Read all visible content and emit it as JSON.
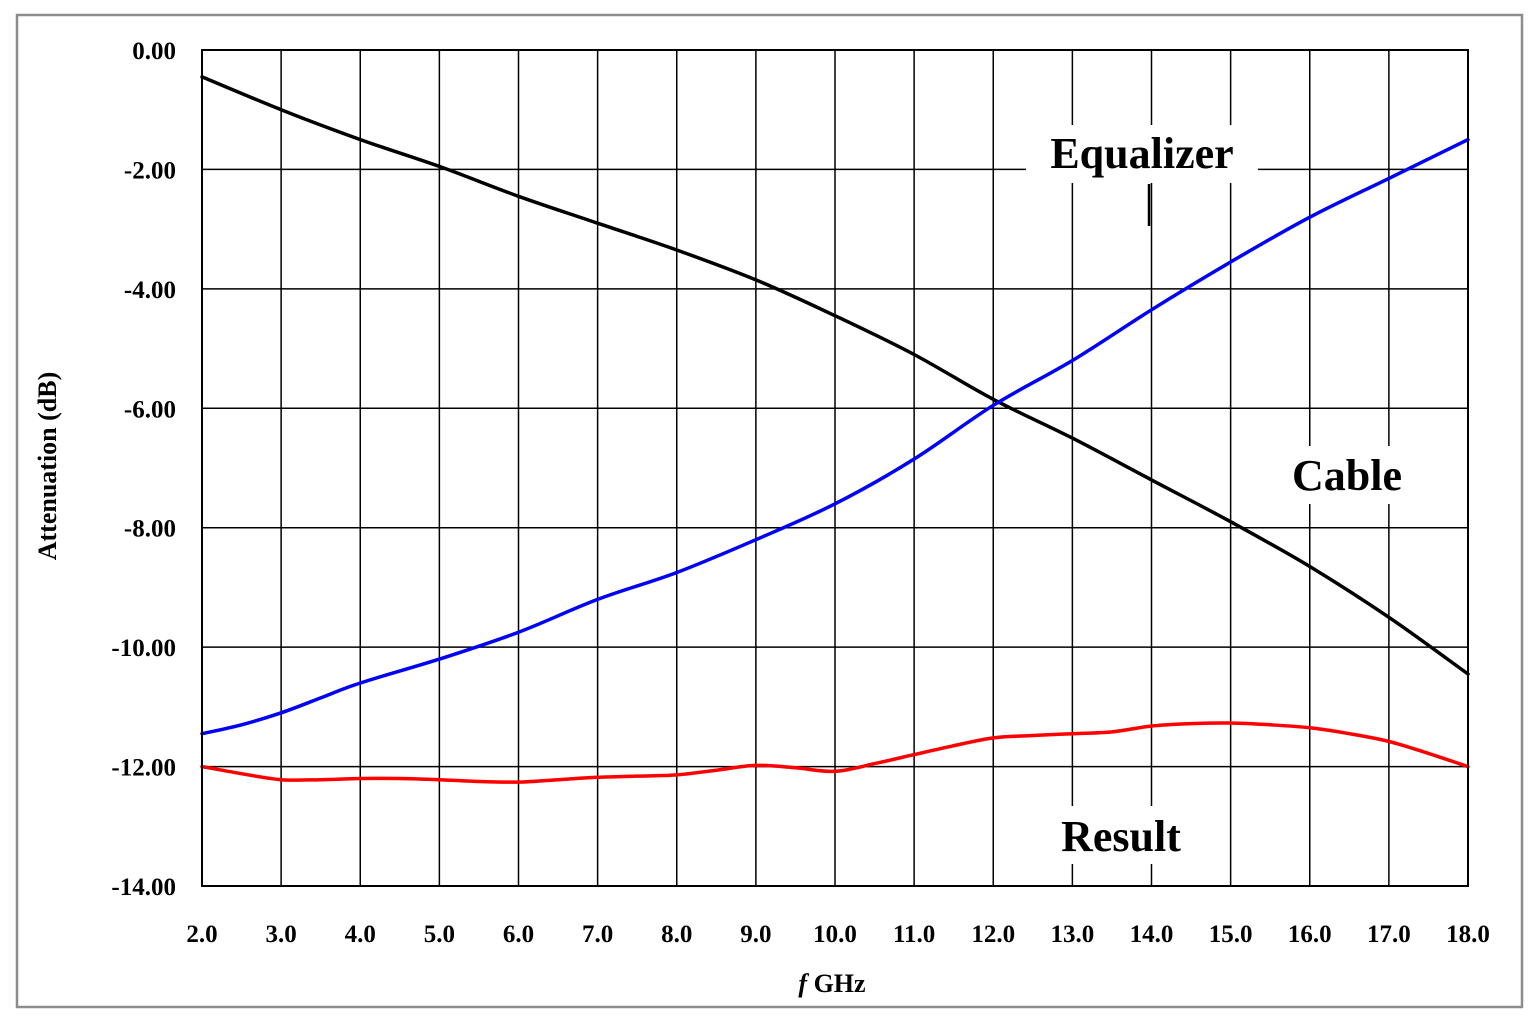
{
  "chart_data": {
    "type": "line",
    "title": "",
    "xlabel_italic": "f",
    "xlabel_rest": " GHz",
    "ylabel": "Attenuation (dB)",
    "xlim": [
      2,
      18
    ],
    "ylim": [
      -14,
      0
    ],
    "grid": true,
    "x_ticks": [
      "2.0",
      "3.0",
      "4.0",
      "5.0",
      "6.0",
      "7.0",
      "8.0",
      "9.0",
      "10.0",
      "11.0",
      "12.0",
      "13.0",
      "14.0",
      "15.0",
      "16.0",
      "17.0",
      "18.0"
    ],
    "y_ticks": [
      "0.00",
      "-2.00",
      "-4.00",
      "-6.00",
      "-8.00",
      "-10.00",
      "-12.00",
      "-14.00"
    ],
    "annotations": {
      "equalizer": "Equalizer",
      "cable": "Cable",
      "result": "Result"
    },
    "series": [
      {
        "name": "Equalizer",
        "color": "#000000",
        "x": [
          2,
          3,
          4,
          5,
          6,
          7,
          8,
          9,
          10,
          11,
          12,
          13,
          14,
          15,
          16,
          17,
          18
        ],
        "y": [
          -0.45,
          -1.0,
          -1.5,
          -1.95,
          -2.45,
          -2.9,
          -3.35,
          -3.85,
          -4.45,
          -5.1,
          -5.85,
          -6.5,
          -7.2,
          -7.9,
          -8.65,
          -9.5,
          -10.45
        ]
      },
      {
        "name": "Cable",
        "color": "#0000ff",
        "x": [
          2,
          2.5,
          3,
          3.5,
          4,
          5,
          6,
          7,
          8,
          9,
          10,
          11,
          12,
          13,
          14,
          15,
          16,
          17,
          18
        ],
        "y": [
          -11.45,
          -11.3,
          -11.1,
          -10.85,
          -10.6,
          -10.2,
          -9.75,
          -9.2,
          -8.75,
          -8.2,
          -7.6,
          -6.85,
          -5.95,
          -5.2,
          -4.35,
          -3.55,
          -2.8,
          -2.15,
          -1.5
        ]
      },
      {
        "name": "Result",
        "color": "#ff0000",
        "x": [
          2,
          2.5,
          3,
          3.5,
          4,
          4.5,
          5,
          5.5,
          6,
          6.5,
          7,
          7.5,
          8,
          8.5,
          9,
          9.5,
          10,
          10.5,
          11,
          11.5,
          12,
          12.5,
          13,
          13.5,
          14,
          14.5,
          15,
          15.5,
          16,
          16.5,
          17,
          17.5,
          18
        ],
        "y": [
          -12.0,
          -12.12,
          -12.22,
          -12.22,
          -12.2,
          -12.2,
          -12.22,
          -12.25,
          -12.26,
          -12.22,
          -12.18,
          -12.16,
          -12.14,
          -12.06,
          -11.98,
          -12.02,
          -12.08,
          -11.95,
          -11.8,
          -11.65,
          -11.52,
          -11.48,
          -11.45,
          -11.42,
          -11.32,
          -11.28,
          -11.27,
          -11.3,
          -11.35,
          -11.45,
          -11.58,
          -11.78,
          -12.0
        ]
      }
    ]
  }
}
